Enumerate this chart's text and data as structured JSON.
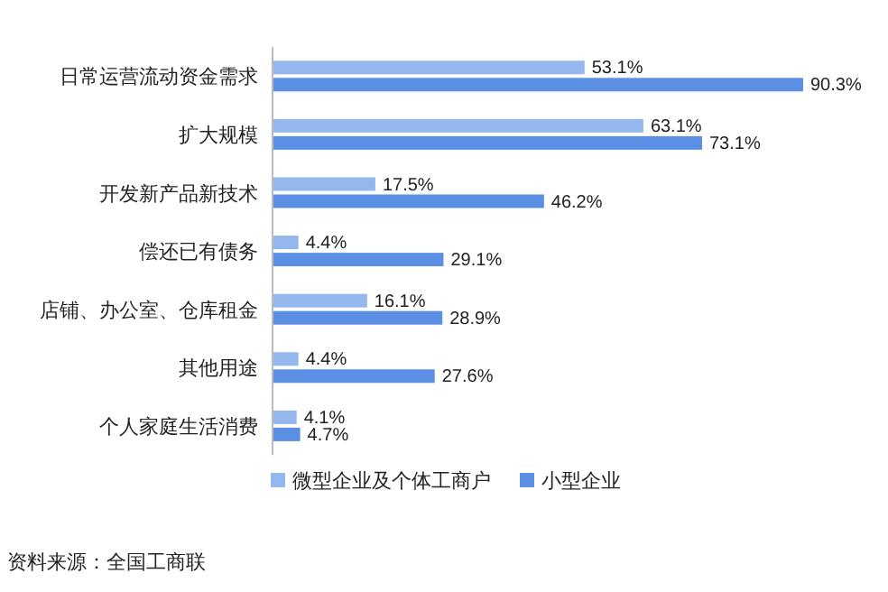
{
  "chart_data": {
    "type": "bar",
    "orientation": "horizontal",
    "legend": "bottom",
    "categories": [
      "日常运营流动资金需求",
      "扩大规模",
      "开发新产品新技术",
      "偿还已有债务",
      "店铺、办公室、仓库租金",
      "其他用途",
      "个人家庭生活消费"
    ],
    "series": [
      {
        "name": "微型企业及个体工商户",
        "color": "#94b7ee",
        "values": [
          53.1,
          63.1,
          17.5,
          4.4,
          16.1,
          4.4,
          4.1
        ],
        "value_labels": [
          "53.1%",
          "63.1%",
          "17.5%",
          "4.4%",
          "16.1%",
          "4.4%",
          "4.1%"
        ]
      },
      {
        "name": "小型企业",
        "color": "#5b8fe4",
        "values": [
          90.3,
          73.1,
          46.2,
          29.1,
          28.9,
          27.6,
          4.7
        ],
        "value_labels": [
          "90.3%",
          "73.1%",
          "46.2%",
          "29.1%",
          "28.9%",
          "27.6%",
          "4.7%"
        ]
      }
    ],
    "annotations": [
      "资料来源：全国工商联"
    ]
  }
}
